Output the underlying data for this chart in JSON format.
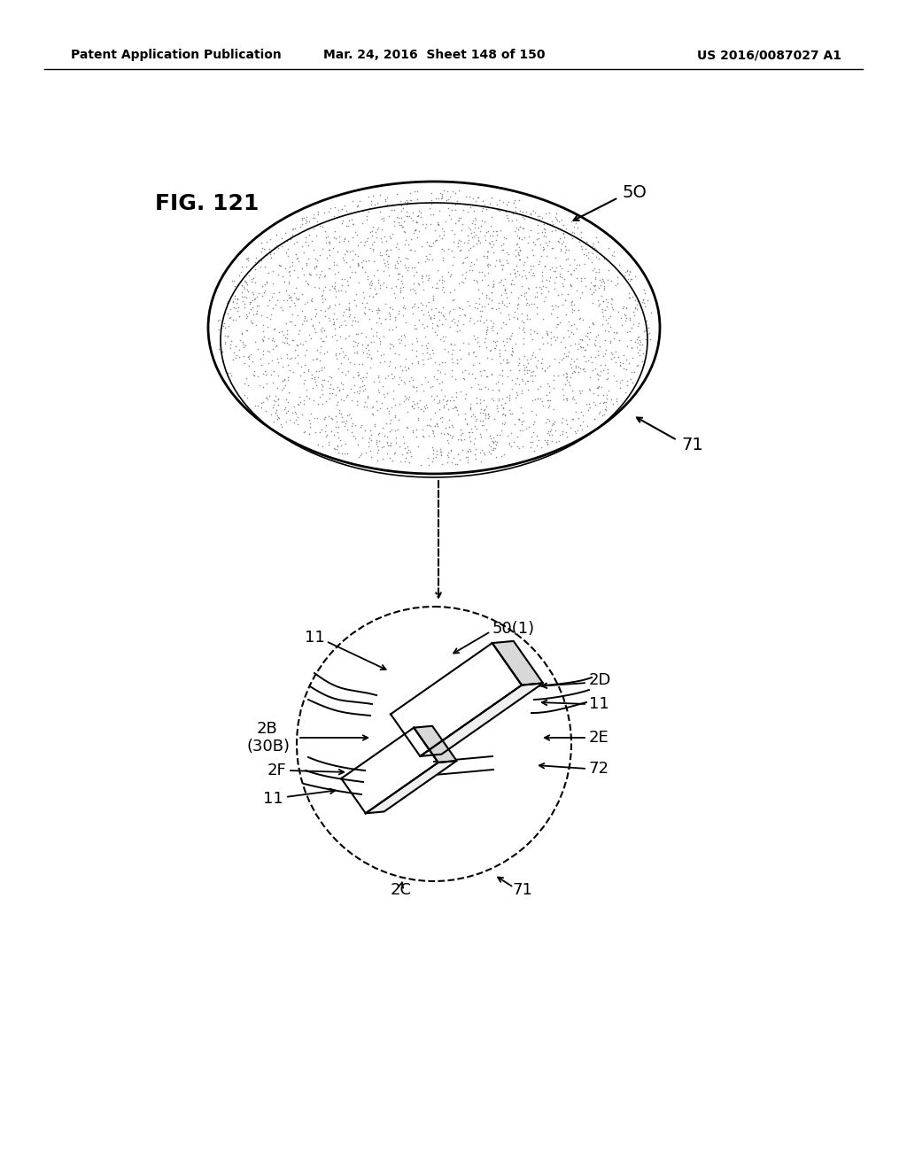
{
  "header_left": "Patent Application Publication",
  "header_mid": "Mar. 24, 2016  Sheet 148 of 150",
  "header_right": "US 2016/0087027 A1",
  "bg_color": "#ffffff",
  "fg_color": "#000000",
  "fig_label": "FIG. 121"
}
